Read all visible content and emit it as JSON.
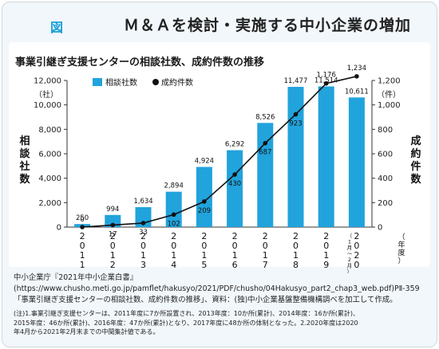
{
  "figure": {
    "label": "図",
    "title": "Ｍ＆Ａを検討・実施する中小企業の増加"
  },
  "chart_data": {
    "type": "bar",
    "title": "事業引継ぎ支援センターの相談社数、成約件数の推移",
    "categories": [
      "2011",
      "2012",
      "2013",
      "2014",
      "2015",
      "2016",
      "2017",
      "2018",
      "2019",
      "2020（1月〜2月）"
    ],
    "category_display": [
      [
        "2",
        "0",
        "1",
        "1"
      ],
      [
        "2",
        "0",
        "1",
        "2"
      ],
      [
        "2",
        "0",
        "1",
        "3"
      ],
      [
        "2",
        "0",
        "1",
        "4"
      ],
      [
        "2",
        "0",
        "1",
        "5"
      ],
      [
        "2",
        "0",
        "1",
        "6"
      ],
      [
        "2",
        "0",
        "1",
        "7"
      ],
      [
        "2",
        "0",
        "1",
        "8"
      ],
      [
        "2",
        "0",
        "1",
        "9"
      ],
      [
        "2",
        "0",
        "2",
        "0"
      ]
    ],
    "category_note": "（1月〜2月）",
    "x_unit": "（年度）",
    "series": [
      {
        "name": "相談社数",
        "type": "bar",
        "axis": "left",
        "color": "#21a3dc",
        "values": [
          250,
          994,
          1634,
          2894,
          4924,
          6292,
          8526,
          11477,
          11514,
          10611
        ],
        "labels": [
          "250",
          "994",
          "1,634",
          "2,894",
          "4,924",
          "6,292",
          "8,526",
          "11,477",
          "11,514",
          "10,611"
        ]
      },
      {
        "name": "成約件数",
        "type": "line",
        "axis": "right",
        "color": "#111111",
        "values": [
          0,
          17,
          33,
          102,
          209,
          430,
          687,
          923,
          1176,
          1234
        ],
        "labels": [
          "0",
          "17",
          "33",
          "102",
          "209",
          "430",
          "687",
          "923",
          "1,176",
          "1,234"
        ]
      }
    ],
    "left_axis": {
      "label": "相談社数",
      "unit": "（社）",
      "ylim": [
        0,
        12000
      ],
      "ticks": [
        "0",
        "2,000",
        "4,000",
        "6,000",
        "8,000",
        "10,000",
        "12,000"
      ]
    },
    "right_axis": {
      "label": "成約件数",
      "unit": "（件）",
      "ylim": [
        0,
        1200
      ],
      "ticks": [
        "0",
        "200",
        "400",
        "600",
        "800",
        "1,000",
        "1,200"
      ]
    },
    "grid": false,
    "legend_position": "top-left"
  },
  "caption": {
    "source": "中小企業庁『2021年中小企業白書』(https://www.chusho.meti.go.jp/pamflet/hakusyo/2021/PDF/chusho/04Hakusyo_part2_chap3_web.pdf)PⅡ-359「事業引継ぎ支援センターの相談社数、成約件数の推移」、資料：(独)中小企業基盤整備機構調べを加工して作成。",
    "notes": [
      "(注)1.事業引継ぎ支援センターは、2011年度に7か所設置され、2013年度：10か所(累計)、2014年度：16か所(累計)、",
      "2015年度：46か所(累計)、2016年度：47か所(累計)となり、2017年度に48か所の体制となった。2.2020年度は2020",
      "年4月から2021年2月末までの中間集計値である。"
    ]
  }
}
